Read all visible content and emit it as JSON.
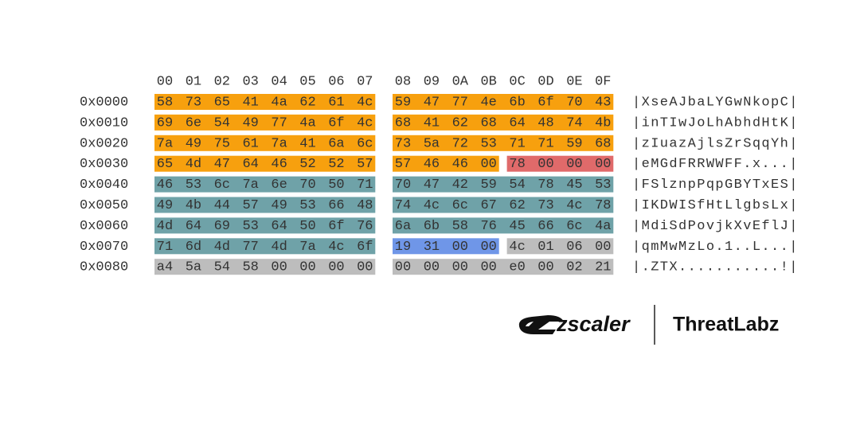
{
  "header": {
    "columns": [
      "00",
      "01",
      "02",
      "03",
      "04",
      "05",
      "06",
      "07",
      "08",
      "09",
      "0A",
      "0B",
      "0C",
      "0D",
      "0E",
      "0F"
    ]
  },
  "rows": [
    {
      "offset": "0x0000",
      "groups": [
        {
          "color": "#f7a00e",
          "bytes": [
            "58",
            "73",
            "65",
            "41",
            "4a",
            "62",
            "61",
            "4c",
            "59",
            "47",
            "77",
            "4e",
            "6b",
            "6f",
            "70",
            "43"
          ]
        }
      ],
      "ascii": "|XseAJbaLYGwNkopC|"
    },
    {
      "offset": "0x0010",
      "groups": [
        {
          "color": "#f7a00e",
          "bytes": [
            "69",
            "6e",
            "54",
            "49",
            "77",
            "4a",
            "6f",
            "4c",
            "68",
            "41",
            "62",
            "68",
            "64",
            "48",
            "74",
            "4b"
          ]
        }
      ],
      "ascii": "|inTIwJoLhAbhdHtK|"
    },
    {
      "offset": "0x0020",
      "groups": [
        {
          "color": "#f7a00e",
          "bytes": [
            "7a",
            "49",
            "75",
            "61",
            "7a",
            "41",
            "6a",
            "6c",
            "73",
            "5a",
            "72",
            "53",
            "71",
            "71",
            "59",
            "68"
          ]
        }
      ],
      "ascii": "|zIuazAjlsZrSqqYh|"
    },
    {
      "offset": "0x0030",
      "groups": [
        {
          "color": "#f7a00e",
          "bytes": [
            "65",
            "4d",
            "47",
            "64",
            "46",
            "52",
            "52",
            "57",
            "57",
            "46",
            "46",
            "00"
          ]
        },
        {
          "color": "#e06a6a",
          "bytes": [
            "78",
            "00",
            "00",
            "00"
          ]
        }
      ],
      "ascii": "|eMGdFRRWWFF.x...|"
    },
    {
      "offset": "0x0040",
      "groups": [
        {
          "color": "#6fa2a8",
          "bytes": [
            "46",
            "53",
            "6c",
            "7a",
            "6e",
            "70",
            "50",
            "71",
            "70",
            "47",
            "42",
            "59",
            "54",
            "78",
            "45",
            "53"
          ]
        }
      ],
      "ascii": "|FSlznpPqpGBYTxES|"
    },
    {
      "offset": "0x0050",
      "groups": [
        {
          "color": "#6fa2a8",
          "bytes": [
            "49",
            "4b",
            "44",
            "57",
            "49",
            "53",
            "66",
            "48",
            "74",
            "4c",
            "6c",
            "67",
            "62",
            "73",
            "4c",
            "78"
          ]
        }
      ],
      "ascii": "|IKDWISfHtLlgbsLx|"
    },
    {
      "offset": "0x0060",
      "groups": [
        {
          "color": "#6fa2a8",
          "bytes": [
            "4d",
            "64",
            "69",
            "53",
            "64",
            "50",
            "6f",
            "76",
            "6a",
            "6b",
            "58",
            "76",
            "45",
            "66",
            "6c",
            "4a"
          ]
        }
      ],
      "ascii": "|MdiSdPovjkXvEflJ|"
    },
    {
      "offset": "0x0070",
      "groups": [
        {
          "color": "#6fa2a8",
          "bytes": [
            "71",
            "6d",
            "4d",
            "77",
            "4d",
            "7a",
            "4c",
            "6f"
          ]
        },
        {
          "color": "#6f96e8",
          "bytes": [
            "19",
            "31",
            "00",
            "00"
          ]
        },
        {
          "color": "#bdbdbd",
          "bytes": [
            "4c",
            "01",
            "06",
            "00"
          ]
        }
      ],
      "ascii": "|qmMwMzLo.1..L...|"
    },
    {
      "offset": "0x0080",
      "groups": [
        {
          "color": "#bdbdbd",
          "bytes": [
            "a4",
            "5a",
            "54",
            "58",
            "00",
            "00",
            "00",
            "00",
            "00",
            "00",
            "00",
            "00",
            "e0",
            "00",
            "02",
            "21"
          ]
        }
      ],
      "ascii": "|.ZTX...........!|"
    }
  ],
  "logo": {
    "brand": "zscaler",
    "product": "ThreatLabz"
  }
}
